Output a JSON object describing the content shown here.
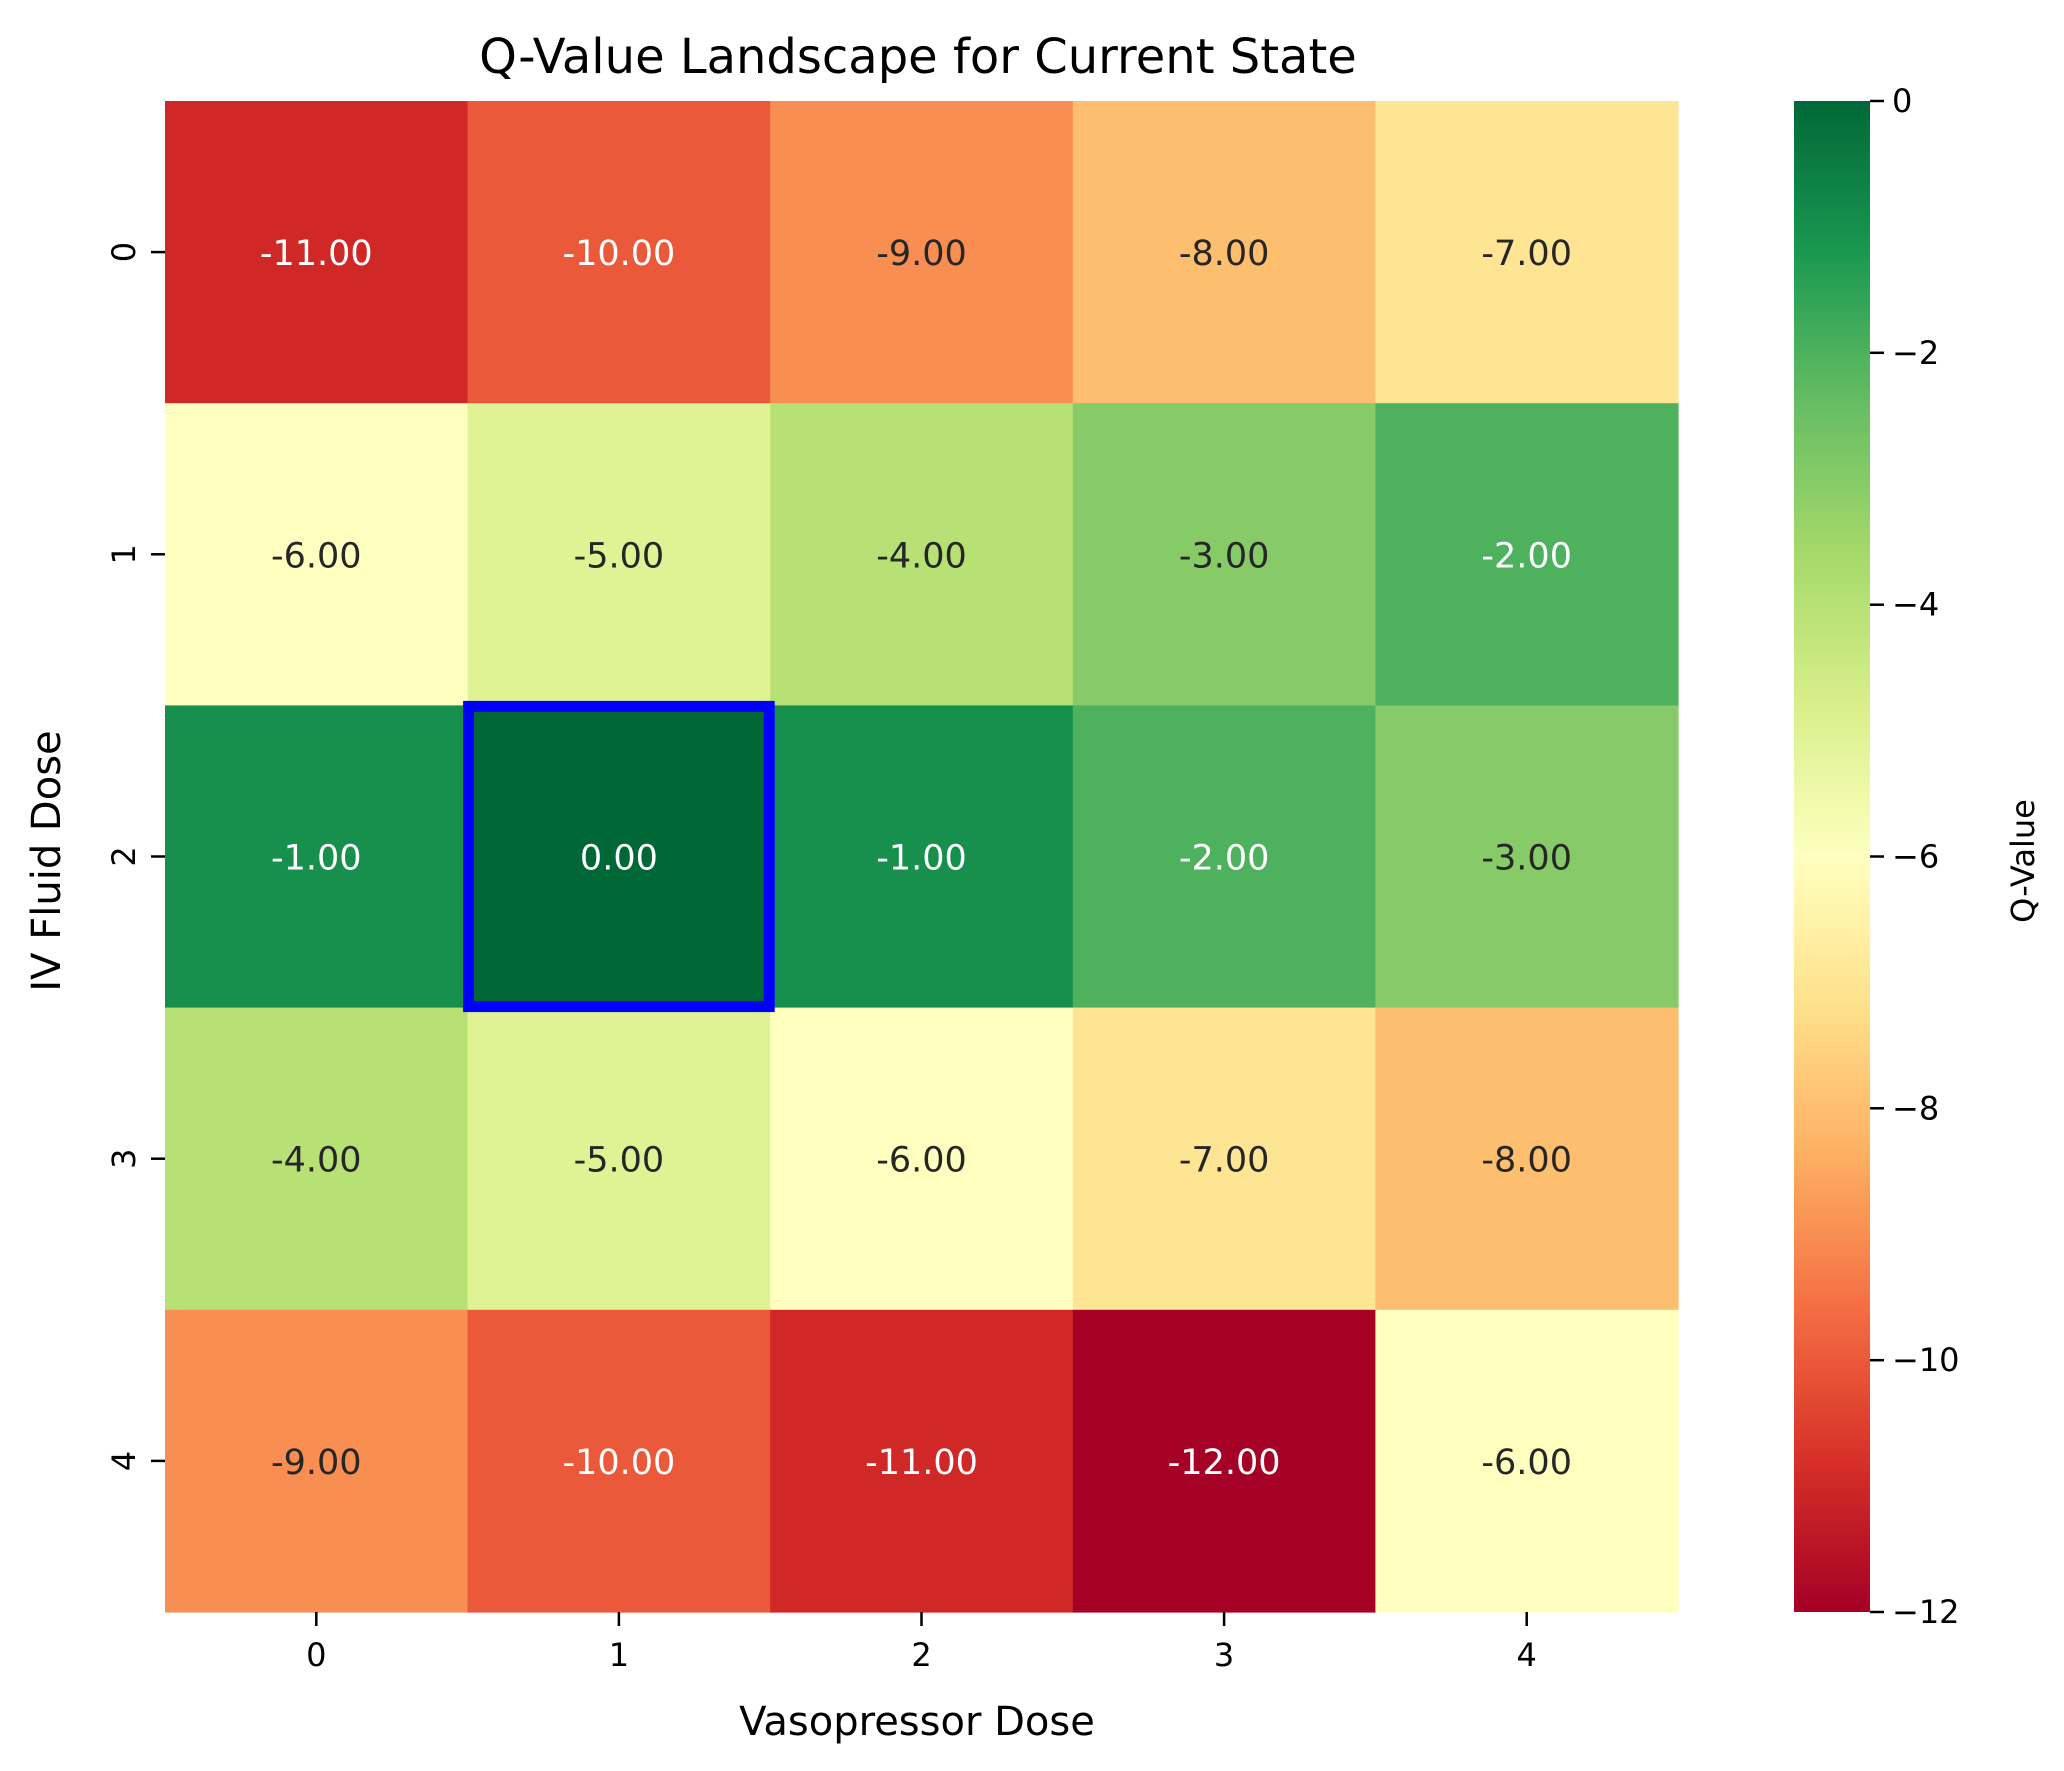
{
  "chart_data": {
    "type": "heatmap",
    "title": "Q-Value Landscape for Current State",
    "xlabel": "Vasopressor Dose",
    "ylabel": "IV Fluid Dose",
    "x_categories": [
      "0",
      "1",
      "2",
      "3",
      "4"
    ],
    "y_categories": [
      "0",
      "1",
      "2",
      "3",
      "4"
    ],
    "values": [
      [
        -11,
        -10,
        -9,
        -8,
        -7
      ],
      [
        -6,
        -5,
        -4,
        -3,
        -2
      ],
      [
        -1,
        0,
        -1,
        -2,
        -3
      ],
      [
        -4,
        -5,
        -6,
        -7,
        -8
      ],
      [
        -9,
        -10,
        -11,
        -12,
        -6
      ]
    ],
    "value_format_decimals": 2,
    "colormap": "RdYlGn",
    "vmin": -12,
    "vmax": 0,
    "colorbar": {
      "label": "Q-Value",
      "ticks": [
        0,
        -2,
        -4,
        -6,
        -8,
        -10,
        -12
      ],
      "tick_labels": [
        "0",
        "−2",
        "−4",
        "−6",
        "−8",
        "−10",
        "−12"
      ]
    },
    "highlight": {
      "row": 2,
      "col": 1,
      "color": "#0000ff"
    },
    "colors": {
      "text_dark": "#262626",
      "text_light": "#ffffff",
      "axis": "#000000"
    }
  }
}
